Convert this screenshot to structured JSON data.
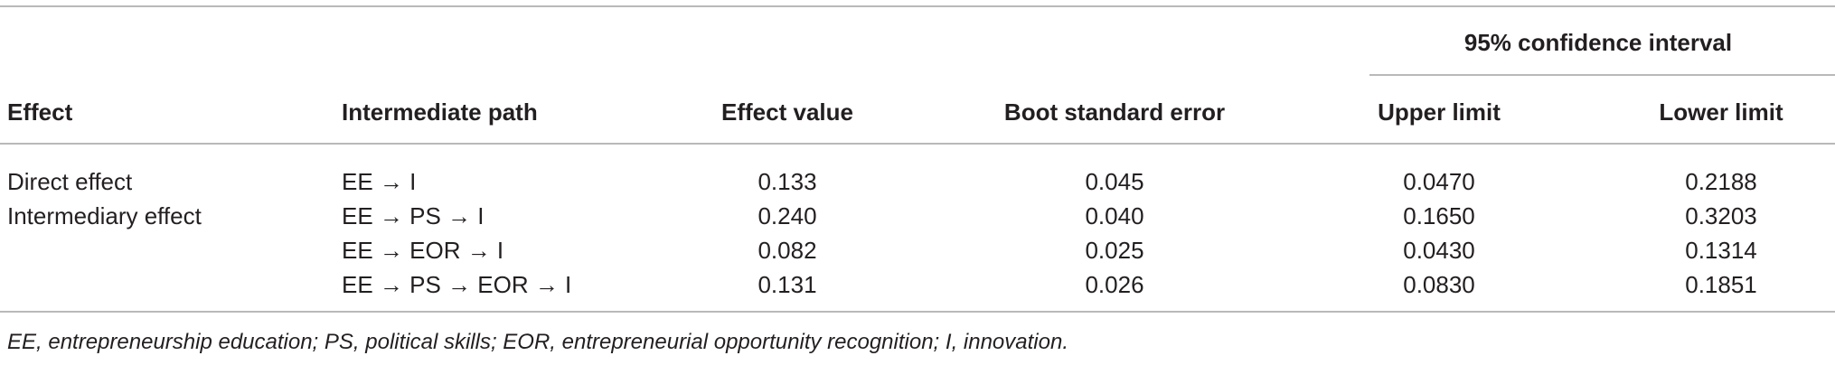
{
  "table": {
    "group_header": "95% confidence interval",
    "headers": [
      "Effect",
      "Intermediate path",
      "Effect value",
      "Boot standard error",
      "Upper limit",
      "Lower limit"
    ],
    "rows": [
      {
        "effect": "Direct effect",
        "path": "EE → I",
        "value": "0.133",
        "se": "0.045",
        "upper": "0.0470",
        "lower": "0.2188"
      },
      {
        "effect": "Intermediary effect",
        "path": "EE → PS → I",
        "value": "0.240",
        "se": "0.040",
        "upper": "0.1650",
        "lower": "0.3203"
      },
      {
        "effect": "",
        "path": "EE → EOR → I",
        "value": "0.082",
        "se": "0.025",
        "upper": "0.0430",
        "lower": "0.1314"
      },
      {
        "effect": "",
        "path": "EE → PS → EOR → I",
        "value": "0.131",
        "se": "0.026",
        "upper": "0.0830",
        "lower": "0.1851"
      }
    ],
    "footnote": "EE, entrepreneurship education; PS, political skills; EOR, entrepreneurial opportunity recognition; I, innovation."
  }
}
